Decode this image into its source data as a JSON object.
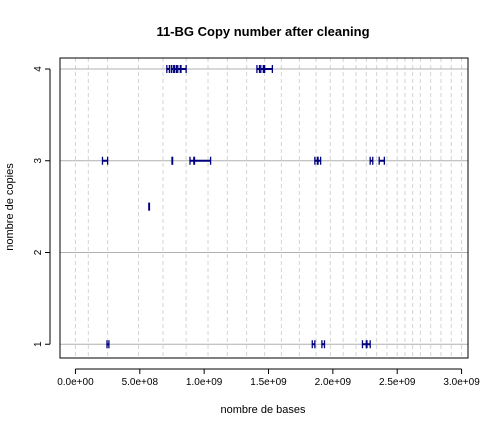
{
  "chart_data": {
    "type": "scatter",
    "title": "11-BG Copy number after cleaning",
    "xlabel": "nombre de bases",
    "ylabel": "nombre de copies",
    "xlim": [
      -120000000.0,
      3050000000.0
    ],
    "ylim": [
      0.85,
      4.12
    ],
    "x_ticks": [
      0,
      500000000.0,
      1000000000.0,
      1500000000.0,
      2000000000.0,
      2500000000.0,
      3000000000.0
    ],
    "x_tick_labels": [
      "0.0e+00",
      "5.0e+08",
      "1.0e+09",
      "1.5e+09",
      "2.0e+09",
      "2.5e+09",
      "3.0e+09"
    ],
    "y_ticks": [
      1,
      2,
      3,
      4
    ],
    "y_tick_labels": [
      "1",
      "2",
      "3",
      "4"
    ],
    "grid": {
      "horizontal_lines_at": [
        1,
        2,
        3,
        4
      ],
      "vertical_dashed_lines_at": [
        0,
        100000000.0,
        250000000.0,
        490000000.0,
        680000000.0,
        860000000.0,
        1030000000.0,
        1180000000.0,
        1330000000.0,
        1470000000.0,
        1600000000.0,
        1740000000.0,
        1870000000.0,
        1980000000.0,
        2080000000.0,
        2180000000.0,
        2260000000.0,
        2340000000.0,
        2420000000.0,
        2500000000.0,
        2560000000.0,
        2620000000.0,
        2680000000.0,
        2760000000.0,
        2840000000.0,
        2920000000.0,
        3000000000.0,
        3050000000.0
      ]
    },
    "segments": [
      {
        "y": 4,
        "x0": 710000000.0,
        "x1": 730000000.0
      },
      {
        "y": 4,
        "x0": 745000000.0,
        "x1": 760000000.0
      },
      {
        "y": 4,
        "x0": 770000000.0,
        "x1": 785000000.0
      },
      {
        "y": 4,
        "x0": 795000000.0,
        "x1": 815000000.0
      },
      {
        "y": 4,
        "x0": 820000000.0,
        "x1": 860000000.0
      },
      {
        "y": 4,
        "x0": 1410000000.0,
        "x1": 1430000000.0
      },
      {
        "y": 4,
        "x0": 1440000000.0,
        "x1": 1460000000.0
      },
      {
        "y": 4,
        "x0": 1470000000.0,
        "x1": 1530000000.0
      },
      {
        "y": 3,
        "x0": 210000000.0,
        "x1": 250000000.0
      },
      {
        "y": 3,
        "x0": 750000000.0,
        "x1": 755000000.0
      },
      {
        "y": 3,
        "x0": 890000000.0,
        "x1": 920000000.0
      },
      {
        "y": 3,
        "x0": 925000000.0,
        "x1": 1050000000.0
      },
      {
        "y": 3,
        "x0": 1860000000.0,
        "x1": 1880000000.0
      },
      {
        "y": 3,
        "x0": 1885000000.0,
        "x1": 1905000000.0
      },
      {
        "y": 3,
        "x0": 2290000000.0,
        "x1": 2310000000.0
      },
      {
        "y": 3,
        "x0": 2360000000.0,
        "x1": 2400000000.0
      },
      {
        "y": 2.5,
        "x0": 570000000.0,
        "x1": 575000000.0
      },
      {
        "y": 1,
        "x0": 245000000.0,
        "x1": 260000000.0
      },
      {
        "y": 1,
        "x0": 1840000000.0,
        "x1": 1860000000.0
      },
      {
        "y": 1,
        "x0": 1915000000.0,
        "x1": 1935000000.0
      },
      {
        "y": 1,
        "x0": 2230000000.0,
        "x1": 2260000000.0
      },
      {
        "y": 1,
        "x0": 2265000000.0,
        "x1": 2290000000.0
      }
    ],
    "colors": {
      "segment": "#00007f",
      "hline": "#b0b0b0",
      "vline": "#d4d4d4",
      "axis": "#000000"
    }
  }
}
